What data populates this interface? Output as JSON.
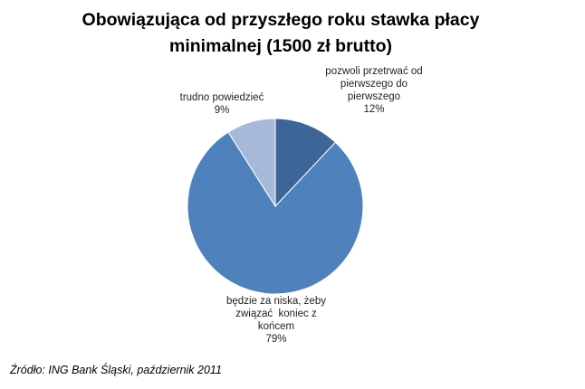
{
  "chart_data": {
    "type": "pie",
    "title": "Obowiązująca od przyszłego roku stawka płacy minimalnej (1500 zł brutto)",
    "slices": [
      {
        "label": [
          "pozwoli przetrwać od",
          "pierwszego do",
          "pierwszego"
        ],
        "value": 12,
        "value_label": "12%",
        "color": "#3E6598"
      },
      {
        "label": [
          "będzie za niska, żeby",
          "związać  koniec z",
          "końcem"
        ],
        "value": 79,
        "value_label": "79%",
        "color": "#4F81BD"
      },
      {
        "label": [
          "trudno powiedzieć"
        ],
        "value": 9,
        "value_label": "9%",
        "color": "#A6B9D8"
      }
    ]
  },
  "source": "Źródło: ING Bank Śląski, październik 2011"
}
